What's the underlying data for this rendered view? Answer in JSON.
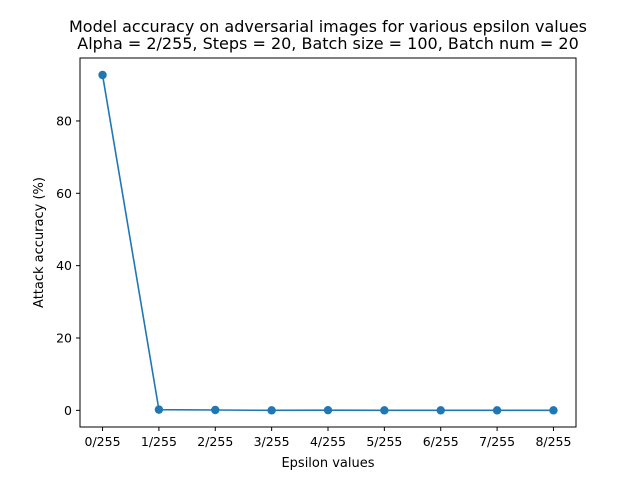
{
  "chart_data": {
    "type": "line",
    "title_lines": [
      "Model accuracy on adversarial images for various epsilon values",
      "Alpha = 2/255, Steps = 20, Batch size = 100, Batch num = 20"
    ],
    "xlabel": "Epsilon values",
    "ylabel": "Attack accuracy (%)",
    "categories": [
      "0/255",
      "1/255",
      "2/255",
      "3/255",
      "4/255",
      "5/255",
      "6/255",
      "7/255",
      "8/255"
    ],
    "series": [
      {
        "values": [
          92.7,
          0.2,
          0.1,
          0.0,
          0.05,
          0.0,
          0.0,
          0.0,
          0.0
        ],
        "color": "#1f77b4",
        "marker": "circle"
      }
    ],
    "yticks": [
      0,
      20,
      40,
      60,
      80
    ],
    "ylim": [
      -4.6,
      97.4
    ],
    "grid": false,
    "legend": "none"
  }
}
